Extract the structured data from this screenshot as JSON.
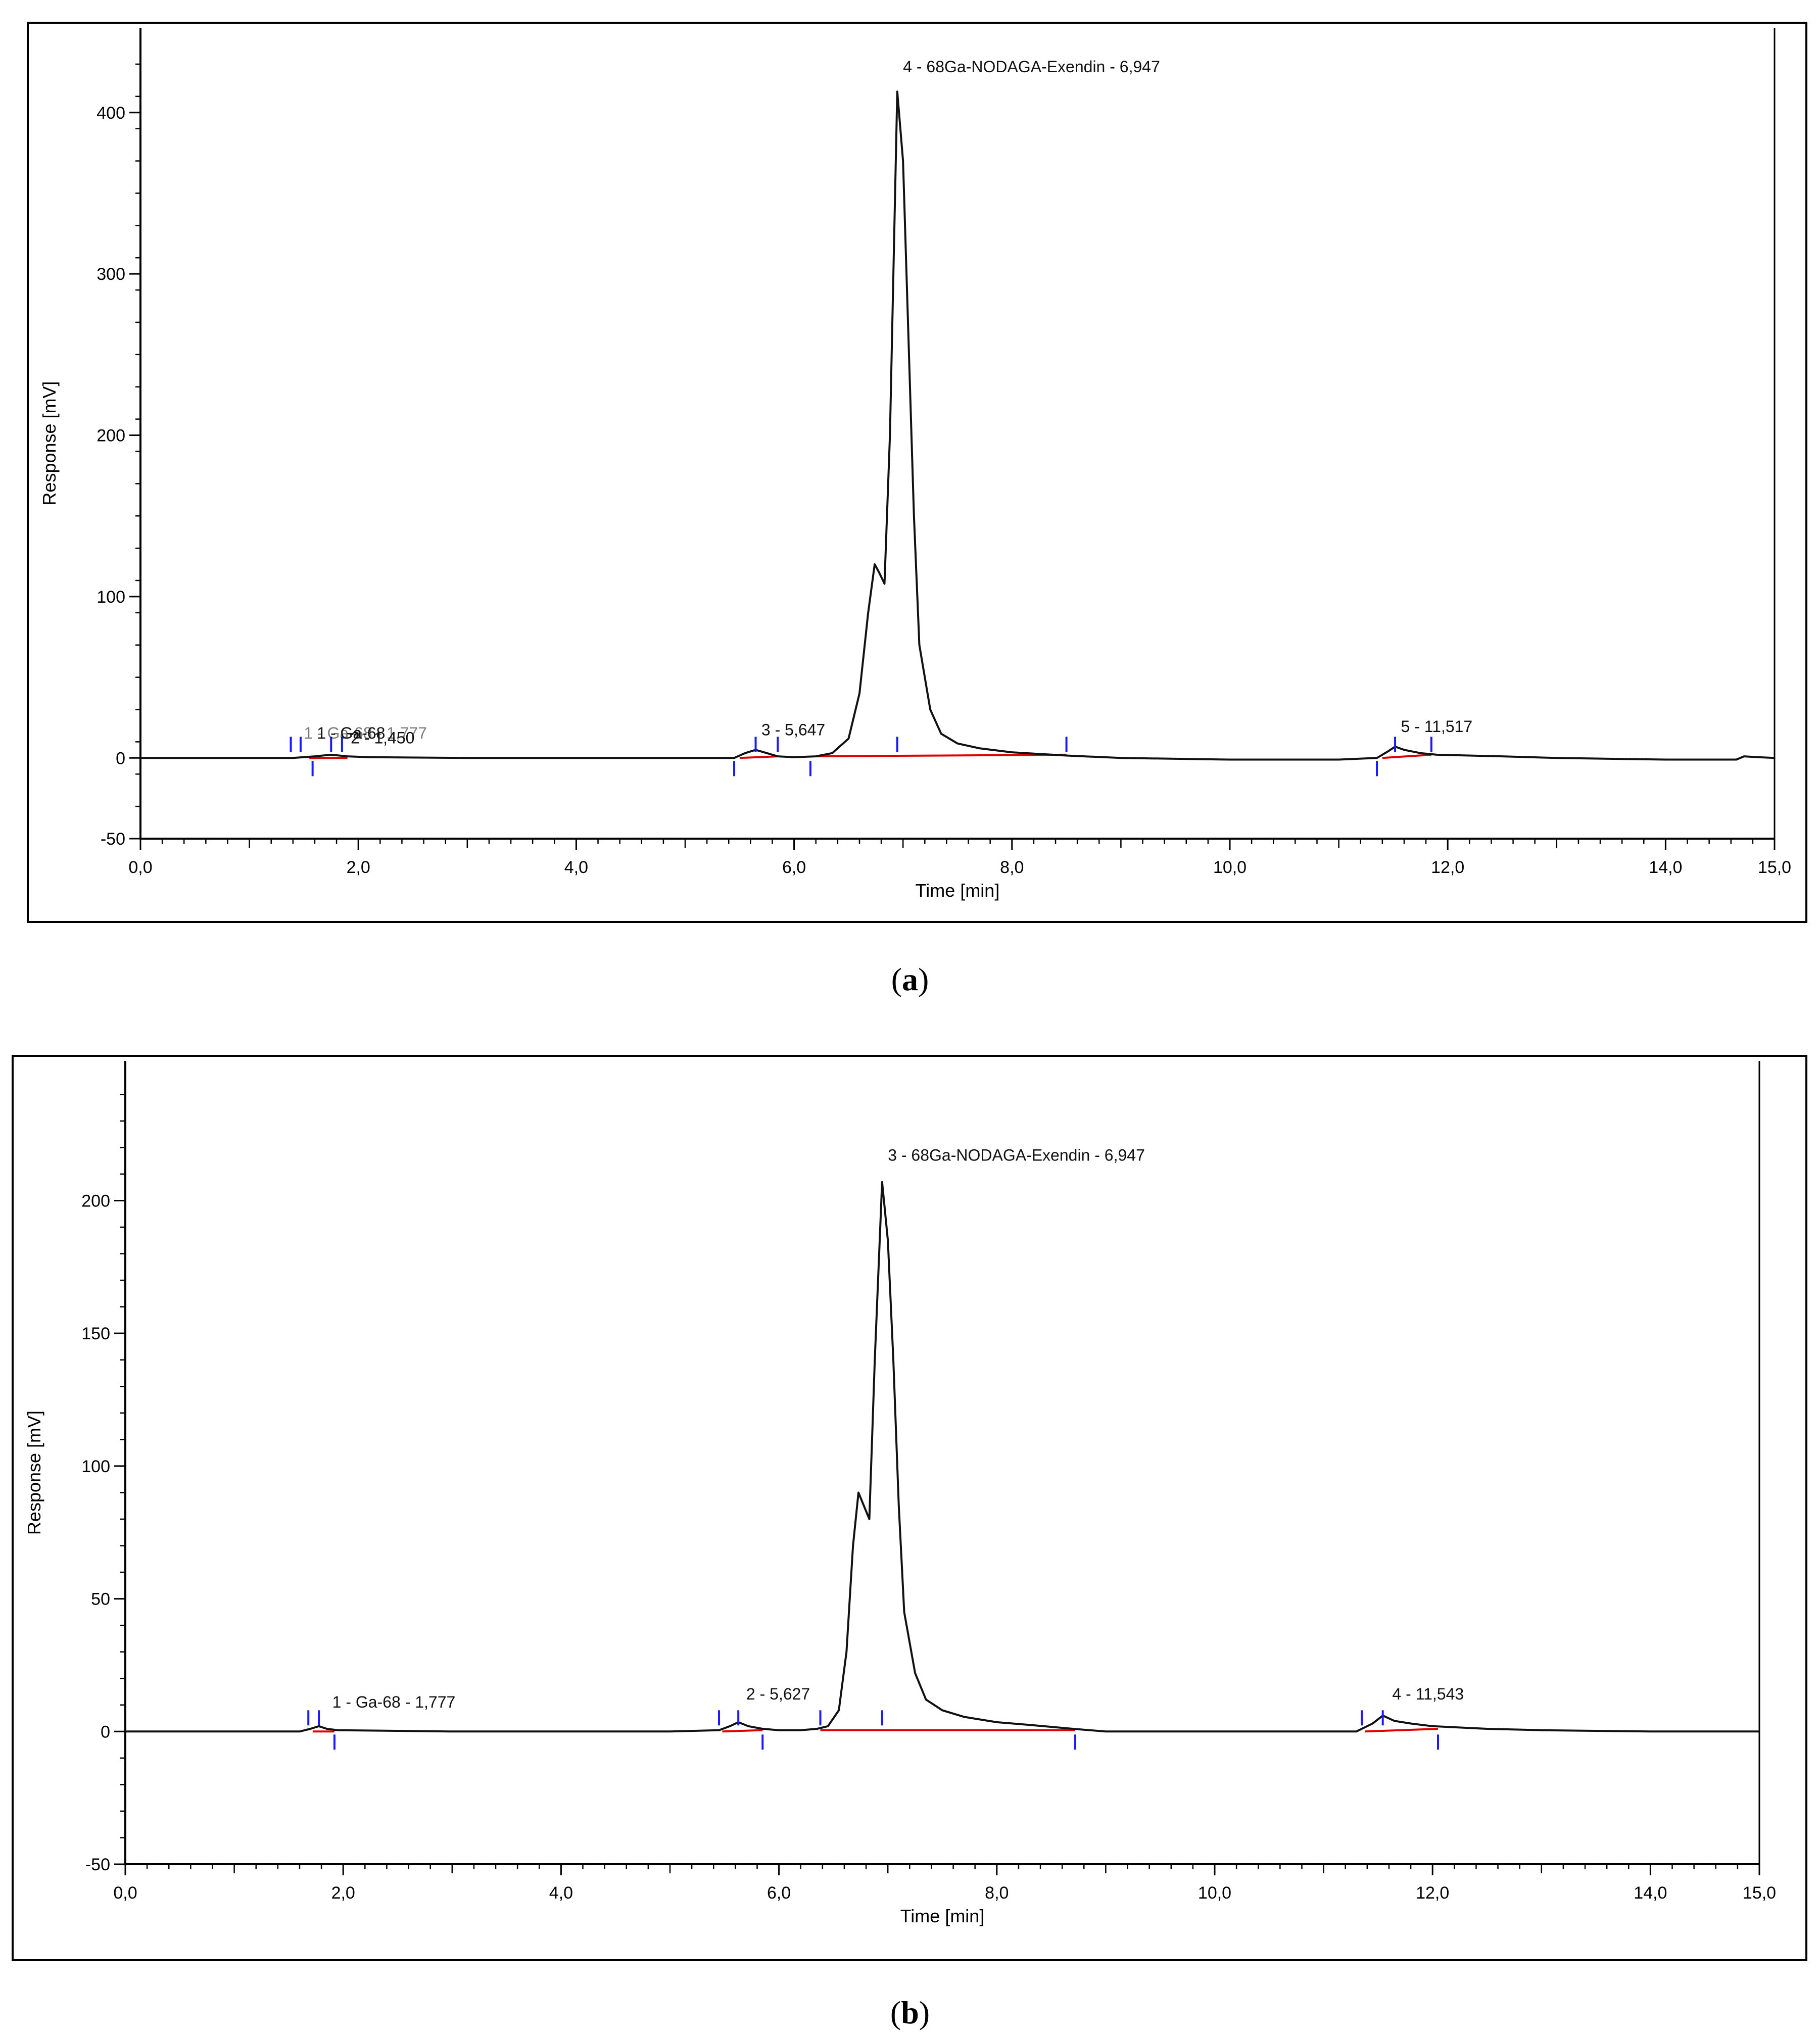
{
  "chart_data": [
    {
      "type": "line",
      "panel": "(a)",
      "panel_letter": "a",
      "xlabel": "Time [min]",
      "ylabel": "Response [mV]",
      "xlim": [
        0,
        15
      ],
      "ylim": [
        -50,
        440
      ],
      "x_ticks": [
        0,
        2,
        4,
        6,
        8,
        10,
        12,
        14,
        15
      ],
      "x_tick_labels": [
        "0,0",
        "2,0",
        "4,0",
        "6,0",
        "8,0",
        "10,0",
        "12,0",
        "14,0",
        "15,0"
      ],
      "y_ticks": [
        -50,
        0,
        100,
        200,
        300,
        400
      ],
      "y_tick_labels": [
        "-50",
        "0",
        "100",
        "200",
        "300",
        "400"
      ],
      "grid": false,
      "series": [
        {
          "x": [
            0,
            1.4,
            1.6,
            1.75,
            1.9,
            2.1,
            3,
            4,
            5,
            5.45,
            5.55,
            5.647,
            5.75,
            5.85,
            6.0,
            6.2,
            6.35,
            6.5,
            6.6,
            6.68,
            6.74,
            6.78,
            6.83,
            6.88,
            6.947,
            7.0,
            7.05,
            7.1,
            7.15,
            7.25,
            7.35,
            7.5,
            7.7,
            8.0,
            8.5,
            9.0,
            10,
            11,
            11.35,
            11.45,
            11.517,
            11.6,
            11.75,
            11.9,
            12.5,
            13,
            14,
            14.65,
            14.72,
            14.85,
            15
          ],
          "y": [
            0,
            0,
            1,
            2,
            1,
            0.5,
            0,
            0,
            0,
            0,
            3,
            5,
            3,
            1,
            0.5,
            1,
            3,
            12,
            40,
            90,
            120,
            115,
            108,
            200,
            413,
            370,
            260,
            150,
            70,
            30,
            15,
            9,
            6,
            3.5,
            1.5,
            0,
            -1,
            -1,
            0,
            4,
            7,
            5,
            3,
            2,
            1,
            0,
            -1,
            -1,
            1,
            0.5,
            0
          ]
        }
      ],
      "baselines": [
        {
          "x": [
            1.55,
            1.9
          ],
          "y": [
            0,
            0
          ]
        },
        {
          "x": [
            5.5,
            5.85
          ],
          "y": [
            0,
            1
          ]
        },
        {
          "x": [
            6.2,
            8.5
          ],
          "y": [
            1,
            2
          ]
        },
        {
          "x": [
            11.4,
            11.85
          ],
          "y": [
            0,
            2
          ]
        }
      ],
      "peak_marks": [
        1.38,
        1.47,
        1.58,
        1.75,
        1.85,
        5.45,
        5.647,
        5.85,
        6.15,
        6.947,
        8.5,
        11.35,
        11.517,
        11.85
      ],
      "peak_labels": [
        {
          "text": "1 - Ga-68",
          "x": 1.62,
          "y": 12
        },
        {
          "text": "2 - 1,450",
          "x": 1.93,
          "y": 9
        },
        {
          "text": "1 - Ga-68 - 1,777",
          "x": 1.5,
          "y": 12,
          "overlap": true
        },
        {
          "text": "3 - 5,647",
          "x": 5.7,
          "y": 14
        },
        {
          "text": "4 - 68Ga-NODAGA-Exendin - 6,947",
          "x": 7.0,
          "y": 425
        },
        {
          "text": "5 - 11,517",
          "x": 11.57,
          "y": 16
        }
      ]
    },
    {
      "type": "line",
      "panel": "(b)",
      "panel_letter": "b",
      "xlabel": "Time [min]",
      "ylabel": "Response [mV]",
      "xlim": [
        0,
        15
      ],
      "ylim": [
        -50,
        245
      ],
      "x_ticks": [
        0,
        2,
        4,
        6,
        8,
        10,
        12,
        14,
        15
      ],
      "x_tick_labels": [
        "0,0",
        "2,0",
        "4,0",
        "6,0",
        "8,0",
        "10,0",
        "12,0",
        "14,0",
        "15,0"
      ],
      "y_ticks": [
        -50,
        0,
        50,
        100,
        150,
        200
      ],
      "y_tick_labels": [
        "-50",
        "0",
        "50",
        "100",
        "150",
        "200"
      ],
      "grid": false,
      "series": [
        {
          "x": [
            0,
            1.6,
            1.7,
            1.777,
            1.85,
            1.95,
            3,
            4,
            5,
            5.45,
            5.55,
            5.627,
            5.72,
            5.85,
            6.0,
            6.2,
            6.35,
            6.45,
            6.55,
            6.62,
            6.68,
            6.73,
            6.78,
            6.83,
            6.88,
            6.947,
            7.0,
            7.05,
            7.1,
            7.15,
            7.25,
            7.35,
            7.5,
            7.7,
            8.0,
            8.3,
            8.7,
            9,
            10,
            11,
            11.3,
            11.45,
            11.543,
            11.65,
            11.8,
            12,
            12.5,
            13,
            14,
            15
          ],
          "y": [
            0,
            0,
            1,
            2,
            1,
            0.5,
            0,
            0,
            0,
            0.5,
            2,
            3.5,
            2,
            1,
            0.5,
            0.5,
            1,
            2,
            8,
            30,
            70,
            90,
            85,
            80,
            140,
            207,
            185,
            140,
            85,
            45,
            22,
            12,
            8,
            5.5,
            3.5,
            2.5,
            1,
            0,
            0,
            0,
            0,
            3,
            6,
            4,
            3,
            2,
            1,
            0.5,
            0,
            0
          ]
        }
      ],
      "baselines": [
        {
          "x": [
            1.72,
            1.92
          ],
          "y": [
            0,
            0
          ]
        },
        {
          "x": [
            5.48,
            5.85
          ],
          "y": [
            0,
            0.5
          ]
        },
        {
          "x": [
            6.38,
            8.72
          ],
          "y": [
            0.5,
            0.5
          ]
        },
        {
          "x": [
            11.38,
            12.05
          ],
          "y": [
            0,
            1
          ]
        }
      ],
      "peak_marks": [
        1.68,
        1.777,
        1.92,
        5.45,
        5.627,
        5.85,
        6.38,
        6.947,
        8.72,
        11.35,
        11.543,
        12.05
      ],
      "peak_labels": [
        {
          "text": "1 - Ga-68 - 1,777",
          "x": 1.9,
          "y": 9
        },
        {
          "text": "2 - 5,627",
          "x": 5.7,
          "y": 12
        },
        {
          "text": "3 - 68Ga-NODAGA-Exendin - 6,947",
          "x": 7.0,
          "y": 215
        },
        {
          "text": "4 - 11,543",
          "x": 11.63,
          "y": 12
        }
      ]
    }
  ]
}
